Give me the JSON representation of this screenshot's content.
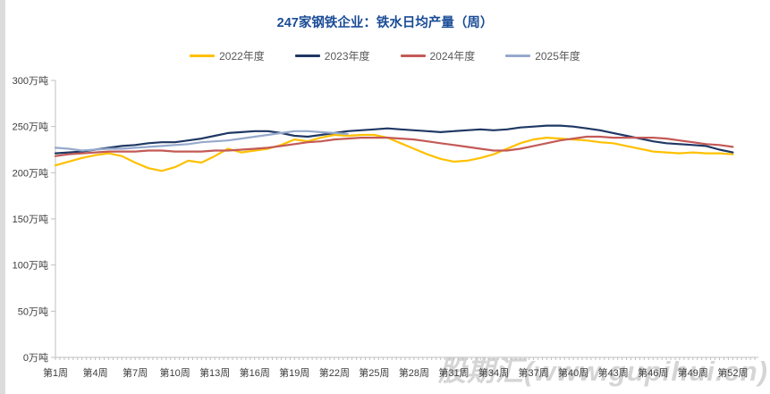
{
  "header": {
    "title": "247家钢铁企业：铁水日均产量（周）",
    "title_color": "#1A4C96"
  },
  "watermark": {
    "text": "股期汇(www.gupihui.cn)"
  },
  "chart_data": {
    "type": "line",
    "title": "247家钢铁企业：铁水日均产量（周）",
    "xlabel": "",
    "ylabel": "万吨",
    "ylim": [
      0,
      300
    ],
    "x_range_weeks": [
      1,
      52
    ],
    "grid": false,
    "legend_position": "top",
    "axis_color": "#BFBFBF",
    "y_ticks": [
      {
        "value": 0,
        "label": "0万吨"
      },
      {
        "value": 50,
        "label": "50万吨"
      },
      {
        "value": 100,
        "label": "100万吨"
      },
      {
        "value": 150,
        "label": "150万吨"
      },
      {
        "value": 200,
        "label": "200万吨"
      },
      {
        "value": 250,
        "label": "250万吨"
      },
      {
        "value": 300,
        "label": "300万吨"
      }
    ],
    "x_tick_weeks": [
      1,
      4,
      7,
      10,
      13,
      16,
      19,
      22,
      25,
      28,
      31,
      34,
      37,
      40,
      43,
      46,
      49,
      52
    ],
    "x_tick_labels": [
      "第1周",
      "第4周",
      "第7周",
      "第10周",
      "第13周",
      "第16周",
      "第19周",
      "第22周",
      "第25周",
      "第28周",
      "第31周",
      "第34周",
      "第37周",
      "第40周",
      "第43周",
      "第46周",
      "第49周",
      "第52周"
    ],
    "series": [
      {
        "name": "2022年度",
        "color": "#FFC000",
        "start_week": 1,
        "values": [
          208,
          212,
          216,
          219,
          221,
          218,
          211,
          205,
          202,
          206,
          213,
          211,
          218,
          226,
          222,
          224,
          226,
          230,
          236,
          234,
          238,
          241,
          240,
          241,
          241,
          238,
          232,
          226,
          220,
          215,
          212,
          213,
          216,
          220,
          226,
          232,
          236,
          238,
          237,
          236,
          235,
          233,
          232,
          229,
          226,
          223,
          222,
          221,
          222,
          221,
          221,
          220
        ]
      },
      {
        "name": "2023年度",
        "color": "#1F3864",
        "start_week": 1,
        "values": [
          221,
          222,
          223,
          225,
          227,
          229,
          230,
          232,
          233,
          233,
          235,
          237,
          240,
          243,
          244,
          245,
          245,
          243,
          240,
          239,
          241,
          243,
          245,
          246,
          247,
          248,
          247,
          246,
          245,
          244,
          245,
          246,
          247,
          246,
          247,
          249,
          250,
          251,
          251,
          250,
          248,
          246,
          243,
          240,
          237,
          234,
          232,
          231,
          230,
          229,
          225,
          222
        ]
      },
      {
        "name": "2024年度",
        "color": "#C35A56",
        "start_week": 1,
        "values": [
          218,
          220,
          221,
          222,
          223,
          223,
          223,
          224,
          224,
          223,
          223,
          223,
          224,
          224,
          225,
          226,
          227,
          229,
          231,
          233,
          234,
          236,
          237,
          238,
          238,
          238,
          237,
          236,
          234,
          232,
          230,
          228,
          226,
          224,
          224,
          226,
          229,
          232,
          235,
          237,
          239,
          239,
          238,
          238,
          238,
          238,
          237,
          235,
          233,
          231,
          230,
          228
        ]
      },
      {
        "name": "2025年度",
        "color": "#95A9CB",
        "start_week": 1,
        "values": [
          227,
          226,
          224,
          225,
          226,
          226,
          227,
          228,
          229,
          230,
          231,
          233,
          234,
          235,
          237,
          239,
          241,
          243,
          245,
          245,
          244,
          243,
          242
        ]
      }
    ]
  }
}
